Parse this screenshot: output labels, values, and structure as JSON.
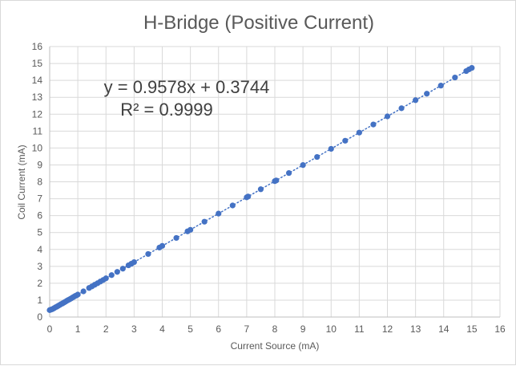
{
  "chart_data": {
    "type": "scatter",
    "title": "H-Bridge (Positive Current)",
    "xlabel": "Current Source (mA)",
    "ylabel": "Coil Current (mA)",
    "xlim": [
      0,
      16
    ],
    "ylim": [
      0,
      16
    ],
    "xticks": [
      "0",
      "1",
      "2",
      "3",
      "4",
      "5",
      "6",
      "7",
      "8",
      "9",
      "10",
      "11",
      "12",
      "13",
      "14",
      "15",
      "16"
    ],
    "yticks": [
      "0",
      "1",
      "2",
      "3",
      "4",
      "5",
      "6",
      "7",
      "8",
      "9",
      "10",
      "11",
      "12",
      "13",
      "14",
      "15",
      "16"
    ],
    "grid": true,
    "marker_color": "#4472c4",
    "trendline": {
      "type": "linear",
      "style": "dotted",
      "slope": 0.9578,
      "intercept": 0.3744,
      "equation_text": "y = 0.9578x + 0.3744",
      "r2_text": "R² = 0.9999"
    },
    "x": [
      0.0,
      0.05,
      0.1,
      0.15,
      0.2,
      0.25,
      0.3,
      0.35,
      0.4,
      0.45,
      0.5,
      0.55,
      0.6,
      0.65,
      0.7,
      0.75,
      0.8,
      0.85,
      0.9,
      0.95,
      1.0,
      1.2,
      1.4,
      1.5,
      1.6,
      1.7,
      1.8,
      1.9,
      2.0,
      2.2,
      2.4,
      2.6,
      2.8,
      2.9,
      3.0,
      3.5,
      3.9,
      4.0,
      4.5,
      4.9,
      5.0,
      5.5,
      6.0,
      6.5,
      7.0,
      7.05,
      7.5,
      8.0,
      8.05,
      8.5,
      9.0,
      9.5,
      10.0,
      10.5,
      11.0,
      11.5,
      12.0,
      12.5,
      13.0,
      13.4,
      13.9,
      14.4,
      14.8,
      14.9,
      15.0
    ],
    "y": [
      0.41,
      0.44,
      0.47,
      0.52,
      0.57,
      0.61,
      0.66,
      0.71,
      0.76,
      0.8,
      0.85,
      0.9,
      0.95,
      1.0,
      1.04,
      1.09,
      1.14,
      1.19,
      1.24,
      1.28,
      1.33,
      1.52,
      1.72,
      1.81,
      1.91,
      2.0,
      2.1,
      2.19,
      2.29,
      2.48,
      2.67,
      2.86,
      3.06,
      3.15,
      3.25,
      3.73,
      4.11,
      4.21,
      4.68,
      5.07,
      5.16,
      5.64,
      6.12,
      6.6,
      7.08,
      7.13,
      7.56,
      8.04,
      8.08,
      8.52,
      8.99,
      9.47,
      9.95,
      10.43,
      10.91,
      11.39,
      11.87,
      12.35,
      12.83,
      13.21,
      13.69,
      14.17,
      14.55,
      14.65,
      14.74
    ]
  }
}
